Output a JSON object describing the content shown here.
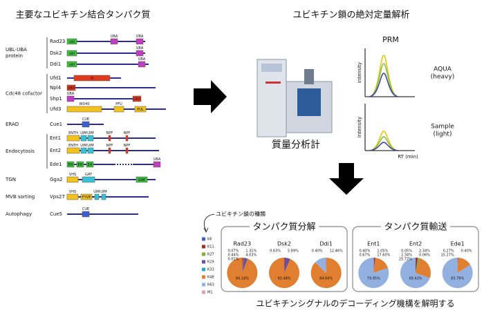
{
  "left": {
    "title": "主要なユビキチン結合タンパク質",
    "groups": [
      {
        "label": [
          "UBL-UBA",
          "protein"
        ],
        "proteins": [
          {
            "name": "Rad23",
            "domains": [
              "ubl",
              "UBA",
              "UBA"
            ]
          },
          {
            "name": "Dsk2",
            "domains": [
              "ubl",
              "UBA"
            ]
          },
          {
            "name": "Ddi1",
            "domains": [
              "ubl",
              "UBA"
            ]
          }
        ]
      },
      {
        "label": [
          "Cdc48 cofactor"
        ],
        "proteins": [
          {
            "name": "Ufd1",
            "domains": [
              "N"
            ]
          },
          {
            "name": "Npl4",
            "domains": [
              "UBX"
            ]
          },
          {
            "name": "Shp1",
            "domains": [
              "UBA",
              "UBX"
            ]
          },
          {
            "name": "Ufd3",
            "domains": [
              "WD40",
              "PFU",
              "PUL"
            ]
          }
        ]
      },
      {
        "label": [
          "ERAD"
        ],
        "proteins": [
          {
            "name": "Cue1",
            "domains": [
              "CUE"
            ]
          }
        ]
      },
      {
        "label": [
          "Endocytosis"
        ],
        "proteins": [
          {
            "name": "Ent1",
            "domains": [
              "ENTH",
              "UIM",
              "UIM",
              "NPF",
              "NPF"
            ]
          },
          {
            "name": "Ent2",
            "domains": [
              "ENTH",
              "UIM",
              "UIM",
              "NPF",
              "NPF"
            ]
          },
          {
            "name": "Ede1",
            "domains": [
              "EH",
              "EH",
              "EH",
              "UBA"
            ]
          }
        ]
      },
      {
        "label": [
          "TGN"
        ],
        "proteins": [
          {
            "name": "Gga2",
            "domains": [
              "VHS",
              "GAT",
              "GAE"
            ]
          }
        ]
      },
      {
        "label": [
          "MVB sorting"
        ],
        "proteins": [
          {
            "name": "Vps27",
            "domains": [
              "VHS",
              "FYVE",
              "UIM",
              "UIM"
            ]
          }
        ]
      },
      {
        "label": [
          "Autophagy"
        ],
        "proteins": [
          {
            "name": "Cue5",
            "domains": [
              "CUE"
            ]
          }
        ]
      }
    ]
  },
  "right": {
    "title": "ユビキチン鎖の絶対定量解析",
    "instrument": "質量分析計",
    "prm": {
      "title": "PRM",
      "y_label": "intensity",
      "top_label": [
        "AQUA",
        "(heavy)"
      ],
      "bottom_label": [
        "Sample",
        "(light)"
      ],
      "x_label": "RT (min)"
    }
  },
  "bottom": {
    "legend_title": "ユビキチン鎖の種類",
    "legend": [
      {
        "name": "K6",
        "color": "#3f5fbf"
      },
      {
        "name": "K11",
        "color": "#9e2f2f"
      },
      {
        "name": "K27",
        "color": "#86a83f"
      },
      {
        "name": "K29",
        "color": "#6d4e9e"
      },
      {
        "name": "K33",
        "color": "#2fa3c2"
      },
      {
        "name": "K48",
        "color": "#e07f2f"
      },
      {
        "name": "K63",
        "color": "#92b1e0"
      },
      {
        "name": "M1",
        "color": "#e0a3a3"
      }
    ],
    "panels": [
      {
        "title": "タンパク質分解",
        "pies": [
          {
            "name": "Rad23",
            "values": [
              0.07,
              1.31,
              0.44,
              4.03,
              0.01,
              94.14,
              null,
              null
            ],
            "value_labels": [
              "0.07%",
              "1.31%",
              "0.44%",
              "4.03%",
              "0.01%",
              "94.14%",
              null,
              null
            ]
          },
          {
            "name": "Dsk2",
            "values": [
              null,
              0.63,
              null,
              5.89,
              null,
              93.48,
              null,
              null
            ],
            "value_labels": [
              null,
              "0.63%",
              null,
              "5.89%",
              null,
              "93.48%",
              null,
              null
            ]
          },
          {
            "name": "Ddi1",
            "values": [
              null,
              0.4,
              null,
              null,
              null,
              84.64,
              12.46,
              null
            ],
            "value_labels": [
              null,
              "0.40%",
              null,
              null,
              null,
              "84.64%",
              "12.46%",
              null
            ]
          }
        ]
      },
      {
        "title": "タンパク質輸送",
        "pies": [
          {
            "name": "Ent1",
            "values": [
              0.4,
              1.05,
              null,
              0.67,
              null,
              17.6,
              79.95,
              null
            ],
            "value_labels": [
              "0.40%",
              "1.05%",
              null,
              "0.67%",
              null,
              "17.60%",
              "79.95%",
              null
            ]
          },
          {
            "name": "Ent2",
            "values": [
              0.05,
              2.34,
              2.34,
              0.06,
              null,
              25.77,
              69.43,
              null
            ],
            "value_labels": [
              "0.05%",
              "2.34%",
              "2.34%",
              "0.06%",
              null,
              "25.77%",
              "69.43%",
              null
            ]
          },
          {
            "name": "Ede1",
            "values": [
              null,
              0.27,
              null,
              0.4,
              null,
              15.27,
              83.79,
              null
            ],
            "value_labels": [
              null,
              "0.27%",
              null,
              "0.40%",
              null,
              "15.27%",
              "83.79%",
              null
            ]
          }
        ]
      }
    ],
    "caption": "ユビキチンシグナルのデコーディング機構を解明する"
  }
}
